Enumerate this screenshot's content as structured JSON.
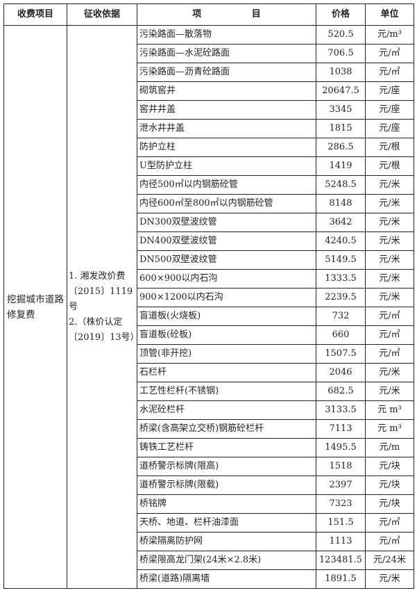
{
  "headers": {
    "category": "收费项目",
    "basis": "征收依据",
    "item_left": "项",
    "item_right": "目",
    "price": "价格",
    "unit": "单位"
  },
  "category": "挖掘城市道路修复费",
  "basis": [
    "1.  湘发改价费〔2015〕1119号",
    "2.（株价认定〔2019〕13号）"
  ],
  "rows": [
    {
      "item": "污染路面—散落物",
      "price": "520.5",
      "unit": "元/m³"
    },
    {
      "item": "污染路面—水泥砼路面",
      "price": "706.5",
      "unit": "元/㎡"
    },
    {
      "item": "污染路面—沥青砼路面",
      "price": "1038",
      "unit": "元/㎡"
    },
    {
      "item": "砌筑窖井",
      "price": "20647.5",
      "unit": "元/座"
    },
    {
      "item": "窖井井盖",
      "price": "3345",
      "unit": "元/座"
    },
    {
      "item": "泄水井井盖",
      "price": "1815",
      "unit": "元/座"
    },
    {
      "item": "防护立柱",
      "price": "286.5",
      "unit": "元/根"
    },
    {
      "item": "U型防护立柱",
      "price": "1419",
      "unit": "元/根"
    },
    {
      "item": "内径500㎡以内钢筋砼管",
      "price": "5248.5",
      "unit": "元/米"
    },
    {
      "item": "内径600㎡至800㎡以内钢筋砼管",
      "price": "8148",
      "unit": "元/米"
    },
    {
      "item": "DN300双壁波纹管",
      "price": "3642",
      "unit": "元/米"
    },
    {
      "item": "DN400双壁波纹管",
      "price": "4240.5",
      "unit": "元/米"
    },
    {
      "item": "DN500双壁波纹管",
      "price": "5149.5",
      "unit": "元/米"
    },
    {
      "item": "600×900以内石沟",
      "price": "1333.5",
      "unit": "元/米"
    },
    {
      "item": "900×1200以内石沟",
      "price": "2239.5",
      "unit": "元/米"
    },
    {
      "item": "盲道板(火烧板)",
      "price": "732",
      "unit": "元/㎡"
    },
    {
      "item": "盲道板(砼板)",
      "price": "660",
      "unit": "元/㎡"
    },
    {
      "item": "顶管(非开挖)",
      "price": "1507.5",
      "unit": "元/㎡"
    },
    {
      "item": "石栏杆",
      "price": "2046",
      "unit": "元/米"
    },
    {
      "item": "工艺性栏杆(不锈钢)",
      "price": "682.5",
      "unit": "元/米"
    },
    {
      "item": "水泥砼栏杆",
      "price": "3133.5",
      "unit": "元 m³"
    },
    {
      "item": "桥梁(含高架立交桥)钢筋砼栏杆",
      "price": "7113",
      "unit": "元 m³"
    },
    {
      "item": "铸铁工艺栏杆",
      "price": "1495.5",
      "unit": "元/m"
    },
    {
      "item": "道桥警示标牌(限高)",
      "price": "1518",
      "unit": "元/块"
    },
    {
      "item": "道桥警示标牌(限载)",
      "price": "2397",
      "unit": "元/块"
    },
    {
      "item": "桥铭牌",
      "price": "7323",
      "unit": "元/块"
    },
    {
      "item": "天桥、地道、栏杆油漆面",
      "price": "151.5",
      "unit": "元/㎡"
    },
    {
      "item": "桥梁隔离防护网",
      "price": "1113",
      "unit": "元/㎡"
    },
    {
      "item": "桥梁限高龙门架(24米×2.8米)",
      "price": "123481.5",
      "unit": "元/24米"
    },
    {
      "item": "桥梁(道路)隔离墙",
      "price": "1891.5",
      "unit": "元/米"
    }
  ]
}
